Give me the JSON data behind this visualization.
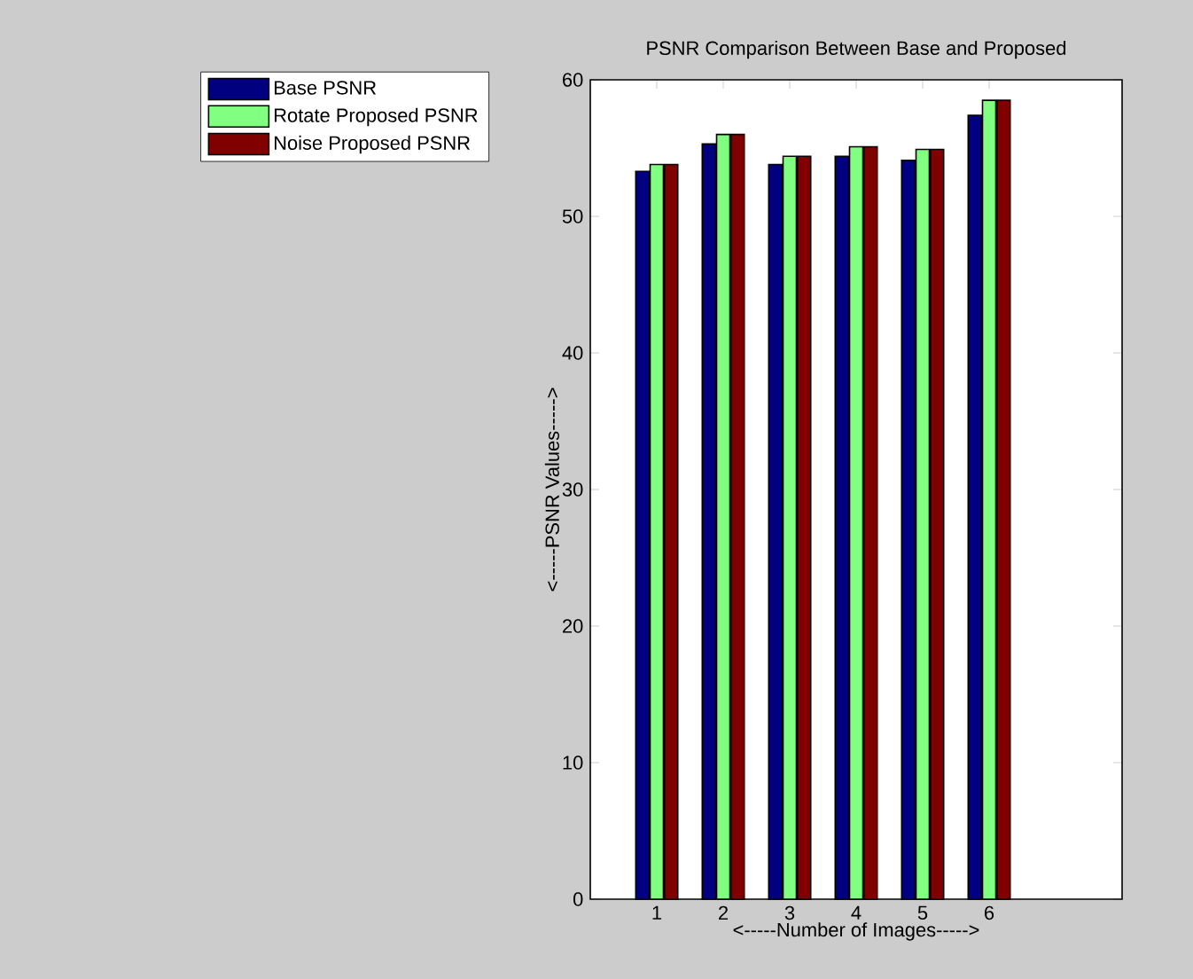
{
  "chart_data": {
    "type": "bar",
    "title": "PSNR Comparison Between Base and Proposed",
    "xlabel": "<-----Number of Images----->",
    "ylabel": "<-----PSNR Values----->",
    "x": [
      1,
      2,
      3,
      4,
      5,
      6
    ],
    "xlim": [
      0,
      8
    ],
    "xticks": [
      1,
      2,
      3,
      4,
      5,
      6
    ],
    "ylim": [
      0,
      60
    ],
    "yticks": [
      0,
      10,
      20,
      30,
      40,
      50,
      60
    ],
    "series": [
      {
        "name": "Base PSNR",
        "color": "#000080",
        "values": [
          53.3,
          55.3,
          53.8,
          54.4,
          54.1,
          57.4
        ]
      },
      {
        "name": "Rotate Proposed PSNR",
        "color": "#80ff80",
        "values": [
          53.8,
          56.0,
          54.4,
          55.1,
          54.9,
          58.5
        ]
      },
      {
        "name": "Noise Proposed PSNR",
        "color": "#800000",
        "values": [
          53.8,
          56.0,
          54.4,
          55.1,
          54.9,
          58.5
        ]
      }
    ],
    "legend": "left",
    "grid": false
  }
}
